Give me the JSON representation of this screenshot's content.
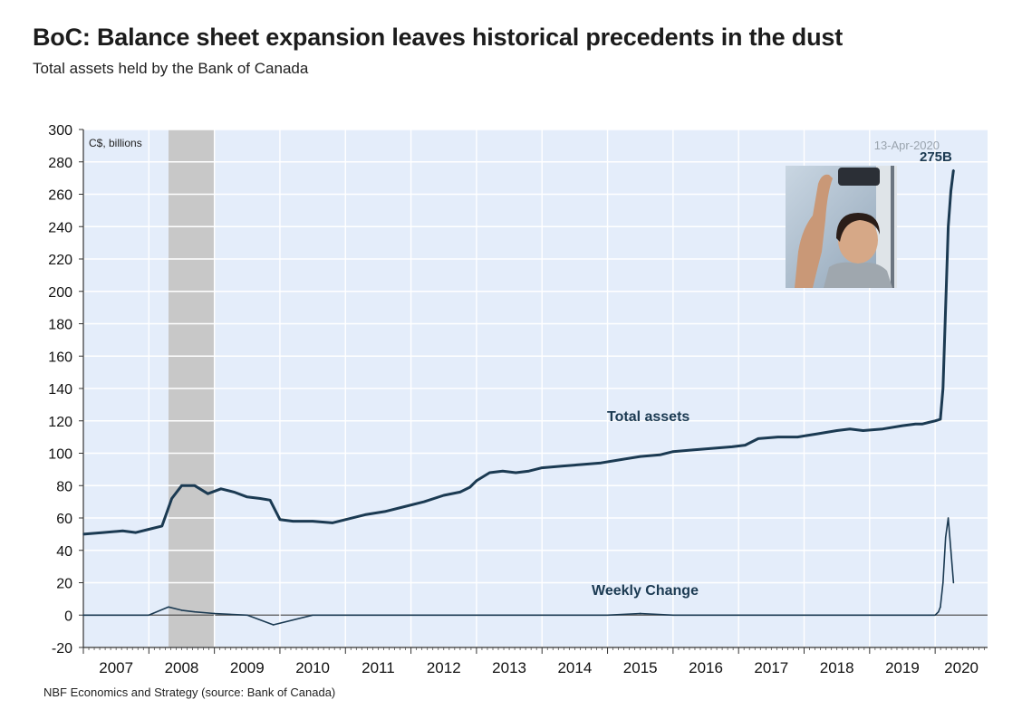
{
  "header": {
    "title": "BoC: Balance sheet expansion leaves historical precedents in the dust",
    "subtitle": "Total assets held by the Bank of Canada"
  },
  "footer": {
    "source": "NBF Economics and Strategy (source: Bank of Canada)"
  },
  "colors": {
    "plot_bg": "#e4edfa",
    "line": "#1b3a52",
    "recession": "#c8c8c8",
    "grid": "#ffffff"
  },
  "chart_data": {
    "type": "line",
    "title": "BoC: Balance sheet expansion leaves historical precedents in the dust",
    "subtitle": "Total assets held by the Bank of Canada",
    "unit_label": "C$, billions",
    "date_label": "13-Apr-2020",
    "peak_label": "275B",
    "ylim": [
      -20,
      300
    ],
    "yticks": [
      -20,
      0,
      20,
      40,
      60,
      80,
      100,
      120,
      140,
      160,
      180,
      200,
      220,
      240,
      260,
      280,
      300
    ],
    "xlim": [
      2007.0,
      2020.8
    ],
    "xticks": [
      "2007",
      "2008",
      "2009",
      "2010",
      "2011",
      "2012",
      "2013",
      "2014",
      "2015",
      "2016",
      "2017",
      "2018",
      "2019",
      "2020"
    ],
    "grid": true,
    "shaded_periods": [
      [
        2008.3,
        2009.0
      ]
    ],
    "series": [
      {
        "name": "Total assets",
        "x": [
          2007.0,
          2007.3,
          2007.6,
          2007.8,
          2008.0,
          2008.2,
          2008.35,
          2008.5,
          2008.7,
          2008.9,
          2009.1,
          2009.3,
          2009.5,
          2009.7,
          2009.85,
          2010.0,
          2010.2,
          2010.5,
          2010.8,
          2011.0,
          2011.3,
          2011.6,
          2011.9,
          2012.2,
          2012.5,
          2012.75,
          2012.9,
          2013.0,
          2013.2,
          2013.4,
          2013.6,
          2013.8,
          2014.0,
          2014.3,
          2014.6,
          2014.9,
          2015.2,
          2015.5,
          2015.8,
          2016.0,
          2016.3,
          2016.6,
          2016.9,
          2017.1,
          2017.3,
          2017.6,
          2017.9,
          2018.2,
          2018.5,
          2018.7,
          2018.9,
          2019.2,
          2019.5,
          2019.7,
          2019.8,
          2019.9,
          2020.0,
          2020.08,
          2020.12,
          2020.16,
          2020.2,
          2020.24,
          2020.28
        ],
        "values": [
          50,
          51,
          52,
          51,
          53,
          55,
          72,
          80,
          80,
          75,
          78,
          76,
          73,
          72,
          71,
          59,
          58,
          58,
          57,
          59,
          62,
          64,
          67,
          70,
          74,
          76,
          79,
          83,
          88,
          89,
          88,
          89,
          91,
          92,
          93,
          94,
          96,
          98,
          99,
          101,
          102,
          103,
          104,
          105,
          109,
          110,
          110,
          112,
          114,
          115,
          114,
          115,
          117,
          118,
          118,
          119,
          120,
          121,
          140,
          190,
          240,
          262,
          275
        ]
      },
      {
        "name": "Weekly Change",
        "x": [
          2007.0,
          2008.0,
          2008.3,
          2008.5,
          2008.7,
          2009.0,
          2009.5,
          2009.9,
          2010.5,
          2011.0,
          2012.0,
          2013.0,
          2014.0,
          2015.0,
          2015.5,
          2016.0,
          2017.0,
          2018.0,
          2019.0,
          2019.9,
          2020.0,
          2020.05,
          2020.08,
          2020.12,
          2020.16,
          2020.2,
          2020.24,
          2020.28
        ],
        "values": [
          0,
          0,
          5,
          3,
          2,
          1,
          0,
          -6,
          0,
          0,
          0,
          0,
          0,
          0,
          1,
          0,
          0,
          0,
          0,
          0,
          0,
          2,
          5,
          20,
          48,
          60,
          40,
          20
        ]
      }
    ]
  }
}
